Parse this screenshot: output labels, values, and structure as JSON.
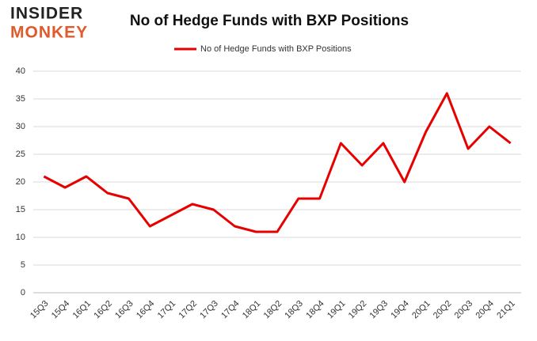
{
  "logo": [
    "INSIDER",
    "MONKEY"
  ],
  "chart_data": {
    "type": "line",
    "title": "No of Hedge Funds with BXP Positions",
    "categories": [
      "15Q3",
      "15Q4",
      "16Q1",
      "16Q2",
      "16Q3",
      "16Q4",
      "17Q1",
      "17Q2",
      "17Q3",
      "17Q4",
      "18Q1",
      "18Q2",
      "18Q3",
      "18Q4",
      "19Q1",
      "19Q2",
      "19Q3",
      "19Q4",
      "20Q1",
      "20Q2",
      "20Q3",
      "20Q4",
      "21Q1"
    ],
    "series": [
      {
        "name": "No of Hedge Funds with BXP Positions",
        "color": "#e60000",
        "values": [
          21,
          19,
          21,
          18,
          17,
          12,
          14,
          16,
          15,
          12,
          11,
          11,
          17,
          17,
          27,
          23,
          27,
          20,
          29,
          36,
          26,
          30,
          27
        ]
      }
    ],
    "ylim": [
      0,
      40
    ],
    "yticks": [
      0,
      5,
      10,
      15,
      20,
      25,
      30,
      35,
      40
    ],
    "grid": true,
    "legend": "top"
  }
}
